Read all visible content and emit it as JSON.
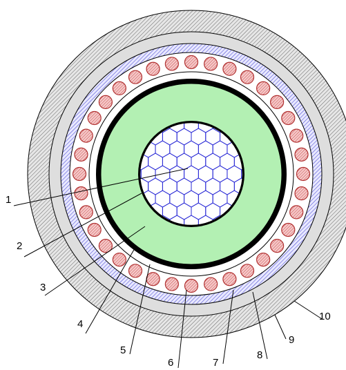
{
  "callouts": [
    {
      "id": "1",
      "label": "1"
    },
    {
      "id": "2",
      "label": "2"
    },
    {
      "id": "3",
      "label": "3"
    },
    {
      "id": "4",
      "label": "4"
    },
    {
      "id": "5",
      "label": "5"
    },
    {
      "id": "6",
      "label": "6"
    },
    {
      "id": "7",
      "label": "7"
    },
    {
      "id": "8",
      "label": "8"
    },
    {
      "id": "9",
      "label": "9"
    },
    {
      "id": "10",
      "label": "10"
    }
  ],
  "colors": {
    "outer_sheath": "#bdbdbd",
    "blue_layer": "#6b6bd8",
    "screen_wire_fill": "#f2b3b3",
    "screen_wire_stroke": "#b03030",
    "insulation": "#b3f0b3",
    "conductor_mesh": "#2a2ad6",
    "thick_ring": "#000000"
  },
  "counts": {
    "screen_wires": 36
  }
}
